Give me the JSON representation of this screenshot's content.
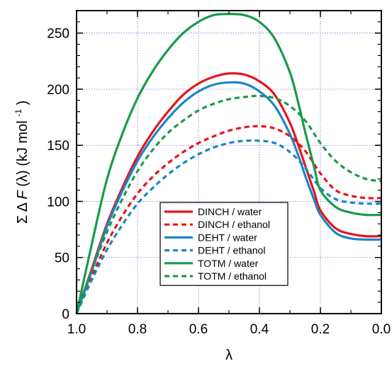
{
  "chart_data": {
    "type": "line",
    "xlabel": "λ",
    "ylabel_parts": {
      "sigma": "Σ",
      "delta": "Δ",
      "func": "F",
      "arg": "(λ)",
      "unit_open": "(kJ mol",
      "exponent": "-1",
      "unit_close": ")"
    },
    "xlim": [
      1.0,
      0.0
    ],
    "ylim": [
      0,
      270
    ],
    "x_reversed": true,
    "grid": true,
    "legend_position": "lower-center",
    "xticks": [
      {
        "value": 1.0,
        "label": "1.0"
      },
      {
        "value": 0.8,
        "label": "0.8"
      },
      {
        "value": 0.6,
        "label": "0.6"
      },
      {
        "value": 0.4,
        "label": "0.4"
      },
      {
        "value": 0.2,
        "label": "0.2"
      },
      {
        "value": 0.0,
        "label": "0.0"
      }
    ],
    "yticks": [
      {
        "value": 0,
        "label": "0"
      },
      {
        "value": 50,
        "label": "50"
      },
      {
        "value": 100,
        "label": "100"
      },
      {
        "value": 150,
        "label": "150"
      },
      {
        "value": 200,
        "label": "200"
      },
      {
        "value": 250,
        "label": "250"
      }
    ],
    "series": [
      {
        "name": "DINCH / water",
        "color": "#e8141c",
        "dash": "solid",
        "x": [
          1.0,
          0.95,
          0.9,
          0.85,
          0.8,
          0.75,
          0.7,
          0.65,
          0.6,
          0.55,
          0.5,
          0.45,
          0.4,
          0.35,
          0.3,
          0.27,
          0.25,
          0.22,
          0.2,
          0.15,
          0.1,
          0.05,
          0.0
        ],
        "y": [
          0,
          40,
          80,
          112,
          140,
          162,
          180,
          195,
          205,
          211,
          214,
          213,
          207,
          195,
          170,
          148,
          132,
          108,
          92,
          76,
          71,
          69,
          69
        ]
      },
      {
        "name": "DINCH / ethanol",
        "color": "#e8141c",
        "dash": "dashed",
        "x": [
          1.0,
          0.95,
          0.9,
          0.85,
          0.8,
          0.75,
          0.7,
          0.65,
          0.6,
          0.55,
          0.5,
          0.45,
          0.4,
          0.35,
          0.3,
          0.25,
          0.2,
          0.15,
          0.1,
          0.05,
          0.0
        ],
        "y": [
          0,
          33,
          63,
          87,
          107,
          122,
          134,
          144,
          152,
          158,
          163,
          166,
          167,
          165,
          158,
          145,
          125,
          110,
          105,
          103,
          103
        ]
      },
      {
        "name": "DEHT / water",
        "color": "#1a86c9",
        "dash": "solid",
        "x": [
          1.0,
          0.95,
          0.9,
          0.85,
          0.8,
          0.75,
          0.7,
          0.65,
          0.6,
          0.55,
          0.5,
          0.45,
          0.4,
          0.35,
          0.3,
          0.27,
          0.25,
          0.22,
          0.2,
          0.15,
          0.1,
          0.05,
          0.0
        ],
        "y": [
          0,
          38,
          78,
          109,
          136,
          157,
          174,
          188,
          198,
          204,
          206,
          205,
          198,
          185,
          160,
          139,
          123,
          101,
          88,
          72,
          67,
          66,
          66
        ]
      },
      {
        "name": "DEHT / ethanol",
        "color": "#1a86c9",
        "dash": "dashed",
        "x": [
          1.0,
          0.95,
          0.9,
          0.85,
          0.8,
          0.75,
          0.7,
          0.65,
          0.6,
          0.55,
          0.5,
          0.45,
          0.4,
          0.35,
          0.3,
          0.25,
          0.2,
          0.15,
          0.1,
          0.05,
          0.0
        ],
        "y": [
          0,
          30,
          57,
          79,
          98,
          112,
          124,
          134,
          142,
          148,
          152,
          154,
          154,
          152,
          144,
          130,
          112,
          102,
          99,
          98,
          98
        ]
      },
      {
        "name": "TOTM / water",
        "color": "#1a9a4a",
        "dash": "solid",
        "x": [
          1.0,
          0.95,
          0.9,
          0.85,
          0.8,
          0.75,
          0.7,
          0.65,
          0.6,
          0.55,
          0.5,
          0.45,
          0.4,
          0.35,
          0.3,
          0.27,
          0.25,
          0.22,
          0.2,
          0.15,
          0.1,
          0.05,
          0.0
        ],
        "y": [
          0,
          62,
          120,
          160,
          192,
          216,
          235,
          250,
          260,
          266,
          267,
          266,
          260,
          245,
          215,
          185,
          162,
          130,
          110,
          95,
          90,
          88,
          88
        ]
      },
      {
        "name": "TOTM / ethanol",
        "color": "#1a9a4a",
        "dash": "dashed",
        "x": [
          1.0,
          0.95,
          0.9,
          0.85,
          0.8,
          0.75,
          0.7,
          0.65,
          0.6,
          0.55,
          0.5,
          0.45,
          0.4,
          0.35,
          0.3,
          0.25,
          0.2,
          0.15,
          0.1,
          0.05,
          0.0
        ],
        "y": [
          0,
          38,
          73,
          102,
          127,
          146,
          161,
          172,
          181,
          187,
          191,
          193,
          194,
          192,
          185,
          172,
          152,
          136,
          126,
          120,
          118
        ]
      }
    ]
  }
}
